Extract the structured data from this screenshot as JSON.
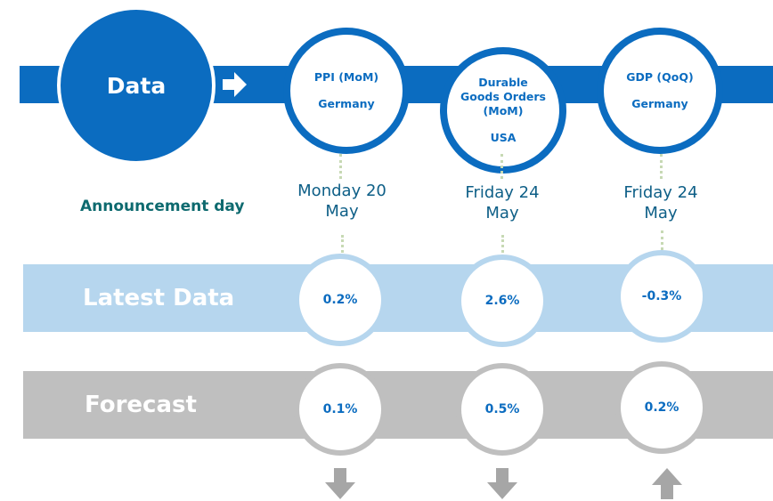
{
  "header": {
    "label": "Data"
  },
  "announcement_label": "Announcement day",
  "latest_label": "Latest Data",
  "forecast_label": "Forecast",
  "events": [
    {
      "indicator": "PPI (MoM)",
      "country": "Germany",
      "date_line1": "Monday 20",
      "date_line2": "May",
      "latest": "0.2%",
      "forecast": "0.1%",
      "direction": "down-arrow-icon"
    },
    {
      "indicator": "Durable Goods Orders (MoM)",
      "country": "USA",
      "date_line1": "Friday 24",
      "date_line2": "May",
      "latest": "2.6%",
      "forecast": "0.5%",
      "direction": "down-arrow-icon"
    },
    {
      "indicator": "GDP (QoQ)",
      "country": "Germany",
      "date_line1": "Friday 24",
      "date_line2": "May",
      "latest": "-0.3%",
      "forecast": "0.2%",
      "direction": "up-arrow-icon"
    }
  ],
  "colors": {
    "primary_blue": "#0b6cc0",
    "light_blue": "#b6d6ee",
    "gray": "#bfbfbf",
    "announcement_teal": "#0e6a6f",
    "arrow_gray": "#a6a6a6"
  }
}
